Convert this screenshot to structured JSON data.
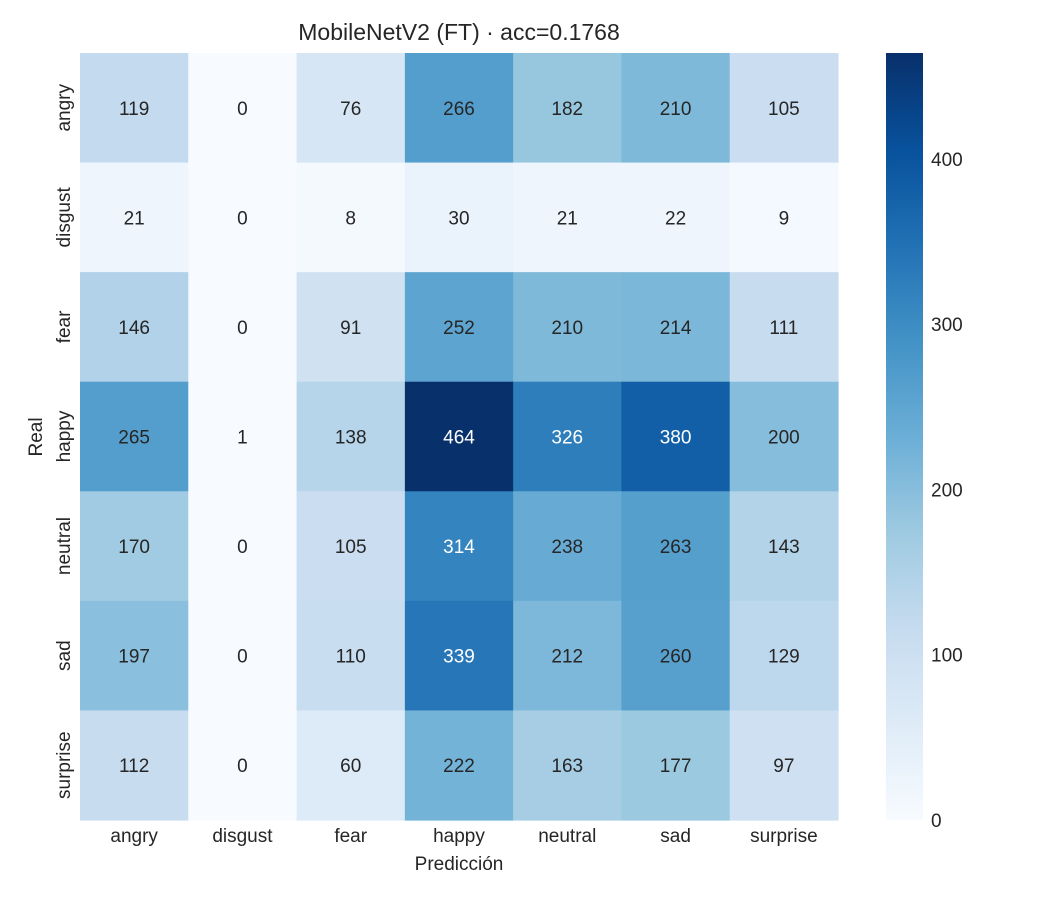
{
  "chart_data": {
    "type": "heatmap",
    "title": "MobileNetV2 (FT) · acc=0.1768",
    "xlabel": "Predicción",
    "ylabel": "Real",
    "x_categories": [
      "angry",
      "disgust",
      "fear",
      "happy",
      "neutral",
      "sad",
      "surprise"
    ],
    "y_categories": [
      "angry",
      "disgust",
      "fear",
      "happy",
      "neutral",
      "sad",
      "surprise"
    ],
    "values": [
      [
        119,
        0,
        76,
        266,
        182,
        210,
        105
      ],
      [
        21,
        0,
        8,
        30,
        21,
        22,
        9
      ],
      [
        146,
        0,
        91,
        252,
        210,
        214,
        111
      ],
      [
        265,
        1,
        138,
        464,
        326,
        380,
        200
      ],
      [
        170,
        0,
        105,
        314,
        238,
        263,
        143
      ],
      [
        197,
        0,
        110,
        339,
        212,
        260,
        129
      ],
      [
        112,
        0,
        60,
        222,
        163,
        177,
        97
      ]
    ],
    "color_scale": {
      "name": "Blues",
      "min": 0,
      "max": 464,
      "ticks": [
        0,
        100,
        200,
        300,
        400
      ],
      "colors": [
        "#f7fbff",
        "#deebf7",
        "#c6dbef",
        "#9ecae1",
        "#6baed6",
        "#4292c6",
        "#2171b5",
        "#08519c",
        "#08306b"
      ]
    },
    "annotation_colors": {
      "dark_text": "#262626",
      "light_text": "#ffffff"
    }
  }
}
